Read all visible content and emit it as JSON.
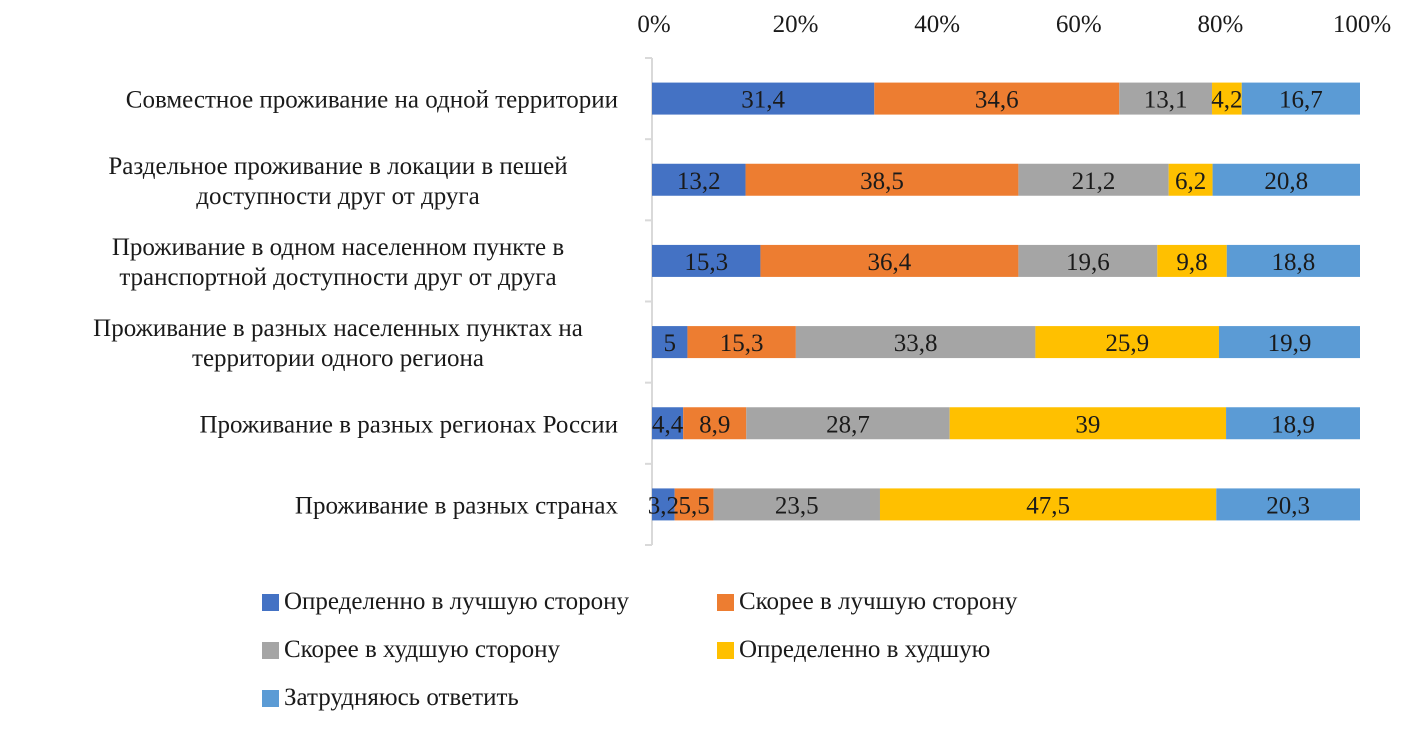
{
  "chart_data": {
    "type": "bar",
    "orientation": "horizontal",
    "stacked": "percent",
    "title": "",
    "xlabel": "",
    "ylabel": "",
    "xlim": [
      0,
      100
    ],
    "x_ticks": [
      "0%",
      "20%",
      "40%",
      "60%",
      "80%",
      "100%"
    ],
    "x_axis_position": "top",
    "grid": false,
    "legend_position": "bottom",
    "categories": [
      "Совместное проживание на одной территории",
      "Раздельное проживание в локации в пешей доступности друг от друга",
      "Проживание в одном населенном пункте в транспортной доступности друг от друга",
      "Проживание в разных населенных пунктах на территории одного региона",
      "Проживание в разных регионах России",
      "Проживание в разных странах"
    ],
    "category_label_lines": [
      [
        "Совместное проживание на одной территории"
      ],
      [
        "Раздельное проживание в локации в пешей",
        "доступности друг от друга"
      ],
      [
        "Проживание в одном населенном пункте в",
        "транспортной доступности друг от друга"
      ],
      [
        "Проживание в разных населенных пунктах на",
        "территории одного региона"
      ],
      [
        "Проживание в разных регионах России"
      ],
      [
        "Проживание в разных странах"
      ]
    ],
    "series": [
      {
        "name": "Определенно в лучшую сторону",
        "color": "#4472c4",
        "values": [
          31.4,
          13.2,
          15.3,
          5,
          4.4,
          3.2
        ],
        "labels": [
          "31,4",
          "13,2",
          "15,3",
          "5",
          "4,4",
          "3,2"
        ]
      },
      {
        "name": "Скорее в лучшую сторону",
        "color": "#ed7d31",
        "values": [
          34.6,
          38.5,
          36.4,
          15.3,
          8.9,
          5.5
        ],
        "labels": [
          "34,6",
          "38,5",
          "36,4",
          "15,3",
          "8,9",
          "5,5"
        ]
      },
      {
        "name": "Скорее в худшую сторону",
        "color": "#a5a5a5",
        "values": [
          13.1,
          21.2,
          19.6,
          33.8,
          28.7,
          23.5
        ],
        "labels": [
          "13,1",
          "21,2",
          "19,6",
          "33,8",
          "28,7",
          "23,5"
        ]
      },
      {
        "name": "Определенно в худшую",
        "color": "#ffc000",
        "values": [
          4.2,
          6.2,
          9.8,
          25.9,
          39,
          47.5
        ],
        "labels": [
          "4,2",
          "6,2",
          "9,8",
          "25,9",
          "39",
          "47,5"
        ]
      },
      {
        "name": "Затрудняюсь ответить",
        "color": "#5b9bd5",
        "values": [
          16.7,
          20.8,
          18.8,
          19.9,
          18.9,
          20.3
        ],
        "labels": [
          "16,7",
          "20,8",
          "18,8",
          "19,9",
          "18,9",
          "20,3"
        ]
      }
    ]
  }
}
